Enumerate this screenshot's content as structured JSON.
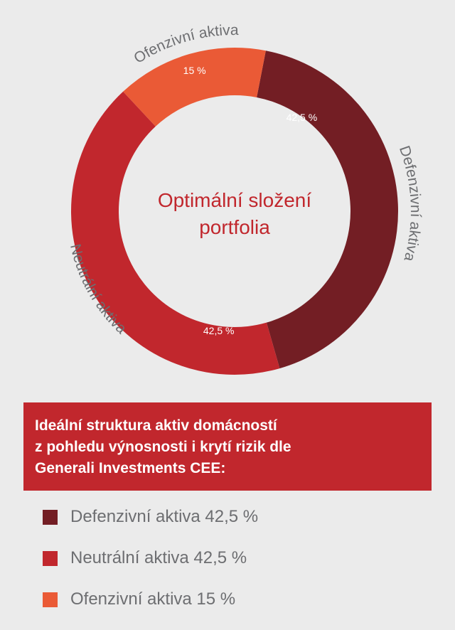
{
  "chart_data": {
    "type": "pie",
    "variant": "donut",
    "title": "Optimální složení portfolia",
    "title_lines": [
      "Optimální složení",
      "portfolia"
    ],
    "slices": [
      {
        "name": "Defenzivní aktiva",
        "value": 42.5,
        "label": "42,5 %",
        "color": "#731e24"
      },
      {
        "name": "Neutrální aktiva",
        "value": 42.5,
        "label": "42,5 %",
        "color": "#c1272d"
      },
      {
        "name": "Ofenzivní aktiva",
        "value": 15,
        "label": "15 %",
        "color": "#ea5a36"
      }
    ]
  },
  "banner": {
    "lines": [
      "Ideální struktura aktiv domácností",
      "z pohledu výnosnosti i krytí rizik dle",
      "Generali Investments CEE:"
    ]
  },
  "legend": [
    {
      "label": "Defenzivní aktiva 42,5 %",
      "color": "#731e24"
    },
    {
      "label": "Neutrální aktiva 42,5 %",
      "color": "#c1272d"
    },
    {
      "label": "Ofenzivní aktiva 15 %",
      "color": "#ea5a36"
    }
  ],
  "colors": {
    "background": "#ebebeb",
    "text_gray": "#6d6e71",
    "title_red": "#c1272d",
    "banner_bg": "#c1272d"
  }
}
